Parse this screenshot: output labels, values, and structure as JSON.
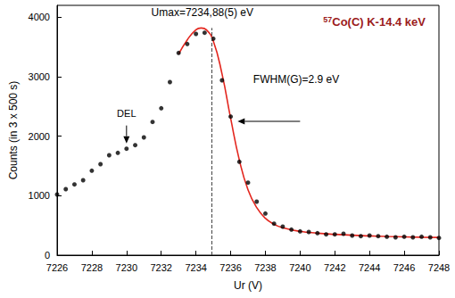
{
  "chart_data": {
    "type": "scatter",
    "title": "57Co(C) K-14.4 keV",
    "x_label": "Ur (V)",
    "y_label": "Counts (in 3 x 500 s)",
    "xlim": [
      7226,
      7248
    ],
    "xticks": [
      7226,
      7228,
      7230,
      7232,
      7234,
      7236,
      7238,
      7240,
      7242,
      7244,
      7246,
      7248
    ],
    "ylim": [
      0,
      4200
    ],
    "yticks": [
      0,
      1000,
      2000,
      3000,
      4000
    ],
    "grid": false,
    "series": [
      {
        "type": "scatter",
        "color": "#000000",
        "marker": "circle",
        "x": [
          7226,
          7226.5,
          7227,
          7227.5,
          7228,
          7228.5,
          7229,
          7229.5,
          7230,
          7230.5,
          7231,
          7231.5,
          7232,
          7232.5,
          7233,
          7233.5,
          7234,
          7234.5,
          7235,
          7235.5,
          7236,
          7236.5,
          7237,
          7237.5,
          7238,
          7238.5,
          7239,
          7239.5,
          7240,
          7240.5,
          7241,
          7241.5,
          7242,
          7242.5,
          7243,
          7243.5,
          7244,
          7244.5,
          7245,
          7245.5,
          7246,
          7246.5,
          7247,
          7247.5,
          7248
        ],
        "values": [
          1020,
          1110,
          1190,
          1260,
          1420,
          1530,
          1680,
          1720,
          1790,
          1850,
          1980,
          2240,
          2470,
          2910,
          3400,
          3550,
          3720,
          3740,
          3640,
          2940,
          2330,
          1570,
          1220,
          900,
          700,
          530,
          480,
          430,
          400,
          390,
          370,
          350,
          350,
          360,
          330,
          320,
          330,
          320,
          310,
          300,
          310,
          300,
          310,
          300,
          290
        ]
      },
      {
        "type": "line",
        "color": "#e3261e",
        "line_style": "solid",
        "x": [
          7233,
          7233.5,
          7234,
          7234.3,
          7234.6,
          7235,
          7235.5,
          7236,
          7236.5,
          7237,
          7237.5,
          7238,
          7238.5,
          7239,
          7240,
          7241,
          7242,
          7243,
          7244,
          7245,
          7246,
          7247,
          7248
        ],
        "values": [
          3380,
          3620,
          3790,
          3820,
          3790,
          3600,
          3050,
          2300,
          1600,
          1100,
          800,
          620,
          520,
          460,
          400,
          370,
          350,
          335,
          325,
          315,
          308,
          302,
          298
        ]
      }
    ],
    "vline": {
      "x": 7234.88,
      "line_style": "dashed"
    },
    "annotations": [
      "Umax=7234,88(5) eV",
      "FWHM(G)=2.9 eV",
      "DEL"
    ]
  }
}
